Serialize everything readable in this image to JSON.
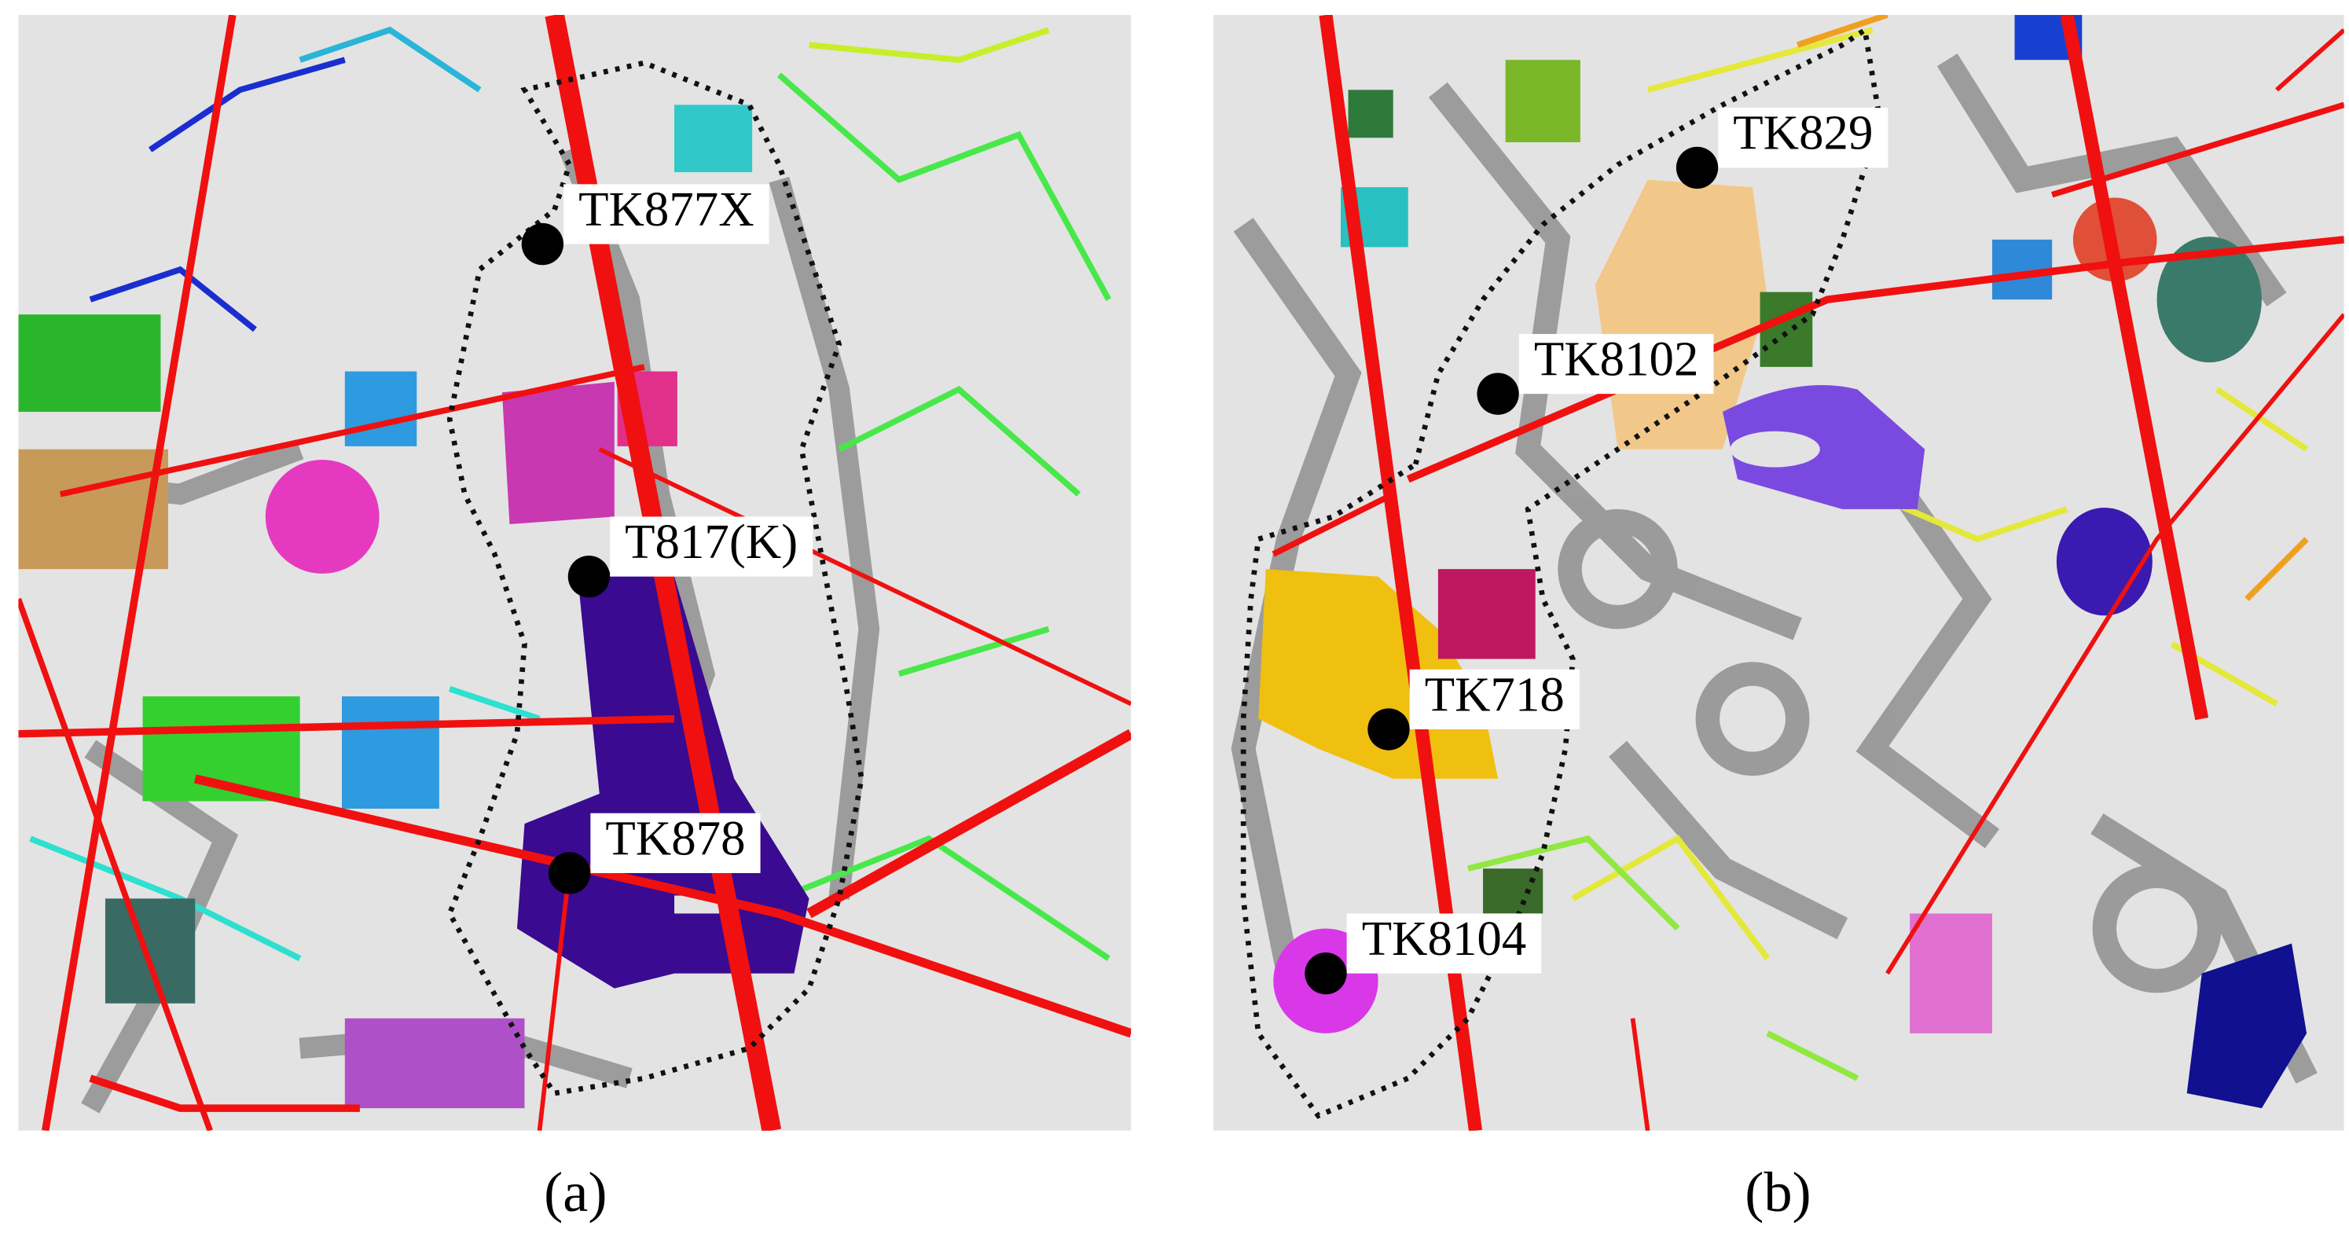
{
  "panels": [
    {
      "caption": "(a)",
      "wells": [
        {
          "label": "TK877X"
        },
        {
          "label": "T817(K)"
        },
        {
          "label": "TK878"
        }
      ]
    },
    {
      "caption": "(b)",
      "wells": [
        {
          "label": "TK829"
        },
        {
          "label": "TK8102"
        },
        {
          "label": "TK718"
        },
        {
          "label": "TK8104"
        }
      ]
    }
  ]
}
